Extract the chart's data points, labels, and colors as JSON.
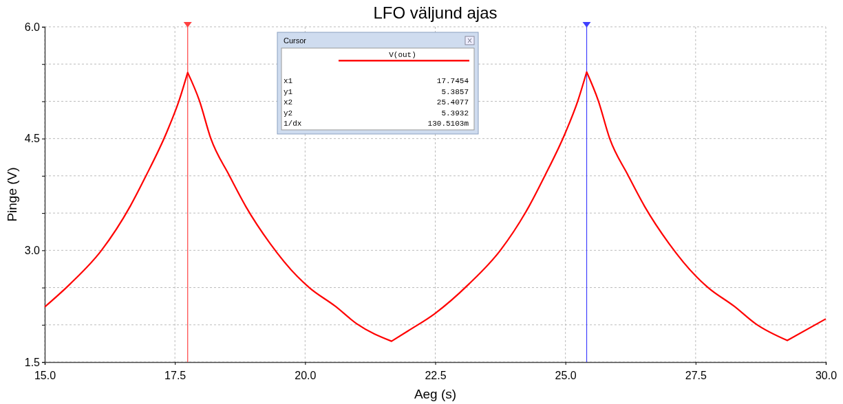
{
  "chart_data": {
    "type": "line",
    "title": "LFO väljund ajas",
    "xlabel": "Aeg (s)",
    "ylabel": "Pinge (V)",
    "xlim": [
      15,
      30
    ],
    "ylim": [
      1.5,
      6.0
    ],
    "xticks": [
      {
        "value": 15,
        "label": "15.0"
      },
      {
        "value": 17.5,
        "label": "17.5"
      },
      {
        "value": 20,
        "label": "20.0"
      },
      {
        "value": 22.5,
        "label": "22.5"
      },
      {
        "value": 25,
        "label": "25.0"
      },
      {
        "value": 27.5,
        "label": "27.5"
      },
      {
        "value": 30,
        "label": "30.0"
      }
    ],
    "yticks": [
      {
        "value": 1.5,
        "label": "1.5"
      },
      {
        "value": 2,
        "label": null
      },
      {
        "value": 2.5,
        "label": null
      },
      {
        "value": 3,
        "label": "3.0"
      },
      {
        "value": 3.5,
        "label": null
      },
      {
        "value": 4,
        "label": null
      },
      {
        "value": 4.5,
        "label": "4.5"
      },
      {
        "value": 5,
        "label": null
      },
      {
        "value": 5.5,
        "label": null
      },
      {
        "value": 6,
        "label": "6.0"
      }
    ],
    "grid": true,
    "legend": "top",
    "line_style": "solid",
    "marker": "none",
    "series": [
      {
        "name": "V(out)",
        "color": "#ff0000",
        "x": [
          15.0,
          15.49,
          16.09,
          16.64,
          16.93,
          17.34,
          17.58,
          17.7454,
          17.97,
          18.19,
          18.54,
          18.86,
          19.33,
          19.85,
          20.08,
          20.58,
          21.0,
          21.66,
          21.98,
          22.49,
          23.15,
          23.75,
          24.3,
          24.59,
          25.0,
          25.24,
          25.4077,
          25.63,
          25.85,
          26.2,
          26.52,
          26.99,
          27.51,
          27.74,
          28.24,
          28.66,
          29.26,
          30.0
        ],
        "values": [
          2.24,
          2.55,
          3.0,
          3.59,
          3.98,
          4.58,
          5.01,
          5.3857,
          5.01,
          4.5,
          4.01,
          3.59,
          3.09,
          2.65,
          2.5,
          2.25,
          2.01,
          1.78,
          1.92,
          2.15,
          2.55,
          3.0,
          3.59,
          3.98,
          4.58,
          5.01,
          5.3932,
          5.01,
          4.5,
          4.01,
          3.59,
          3.09,
          2.65,
          2.5,
          2.25,
          2.01,
          1.79,
          2.08
        ]
      }
    ],
    "ref_lines": [
      {
        "axis": "x",
        "value": 17.7454,
        "color": "#ff4040"
      },
      {
        "axis": "x",
        "value": 25.4077,
        "color": "#4040ff"
      }
    ],
    "annotations": [
      "Cursor",
      "x1",
      "17.7454",
      "y1",
      "5.3857",
      "x2",
      "25.4077",
      "y2",
      "5.3932",
      "1/dx",
      "130.5103m"
    ]
  }
}
